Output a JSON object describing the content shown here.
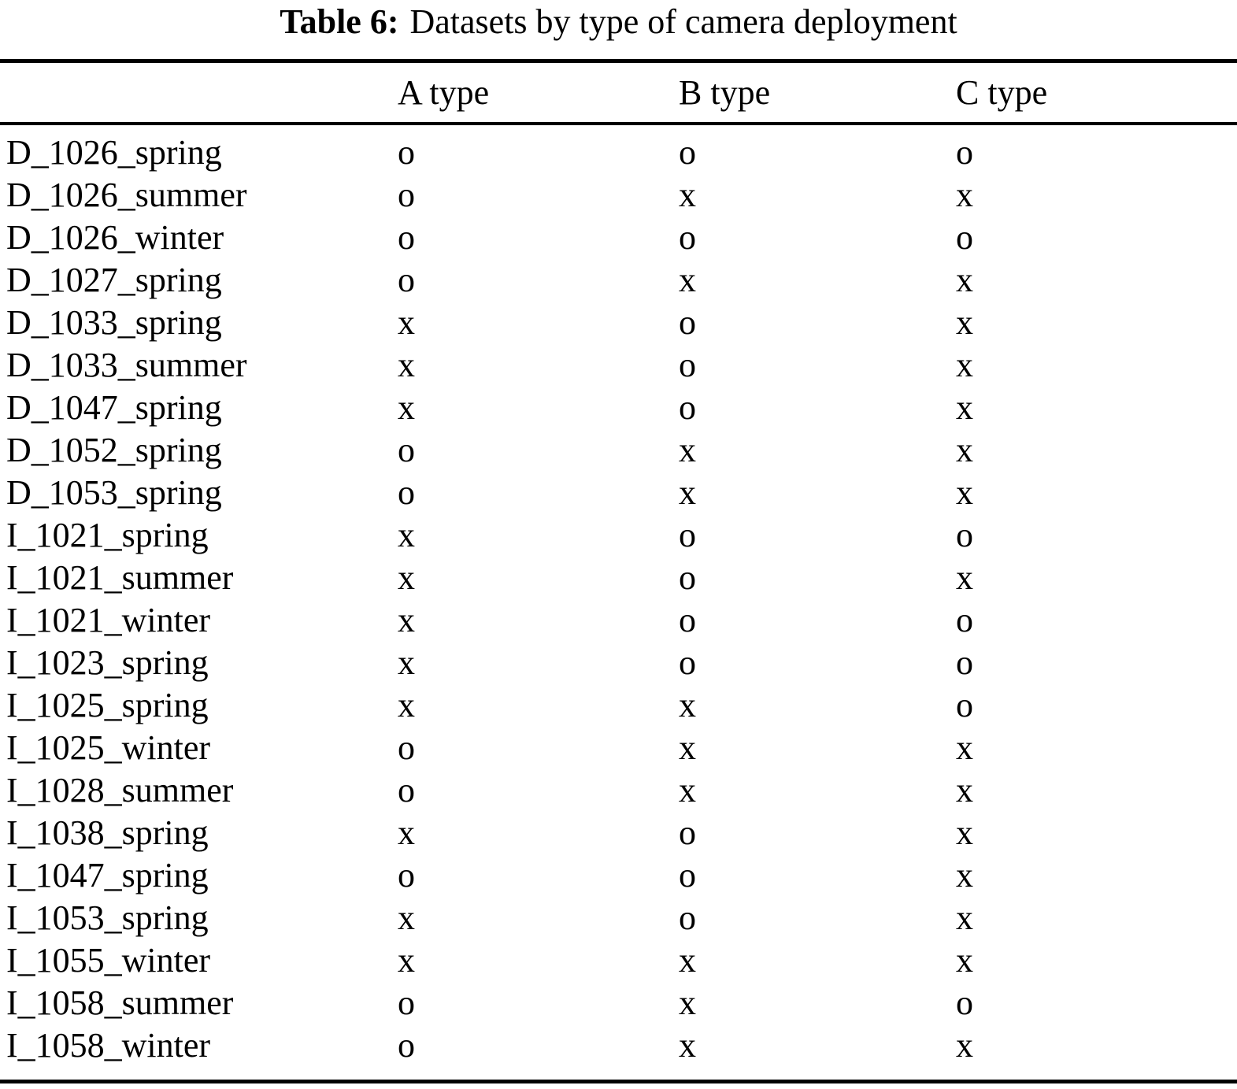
{
  "table": {
    "caption": {
      "label": "Table 6:",
      "text": "Datasets by type of camera deployment"
    },
    "columns": [
      "A type",
      "B type",
      "C type"
    ],
    "rows": [
      {
        "name": "D_1026_spring",
        "values": [
          "o",
          "o",
          "o"
        ]
      },
      {
        "name": "D_1026_summer",
        "values": [
          "o",
          "x",
          "x"
        ]
      },
      {
        "name": "D_1026_winter",
        "values": [
          "o",
          "o",
          "o"
        ]
      },
      {
        "name": "D_1027_spring",
        "values": [
          "o",
          "x",
          "x"
        ]
      },
      {
        "name": "D_1033_spring",
        "values": [
          "x",
          "o",
          "x"
        ]
      },
      {
        "name": "D_1033_summer",
        "values": [
          "x",
          "o",
          "x"
        ]
      },
      {
        "name": "D_1047_spring",
        "values": [
          "x",
          "o",
          "x"
        ]
      },
      {
        "name": "D_1052_spring",
        "values": [
          "o",
          "x",
          "x"
        ]
      },
      {
        "name": "D_1053_spring",
        "values": [
          "o",
          "x",
          "x"
        ]
      },
      {
        "name": "I_1021_spring",
        "values": [
          "x",
          "o",
          "o"
        ]
      },
      {
        "name": "I_1021_summer",
        "values": [
          "x",
          "o",
          "x"
        ]
      },
      {
        "name": "I_1021_winter",
        "values": [
          "x",
          "o",
          "o"
        ]
      },
      {
        "name": "I_1023_spring",
        "values": [
          "x",
          "o",
          "o"
        ]
      },
      {
        "name": "I_1025_spring",
        "values": [
          "x",
          "x",
          "o"
        ]
      },
      {
        "name": "I_1025_winter",
        "values": [
          "o",
          "x",
          "x"
        ]
      },
      {
        "name": "I_1028_summer",
        "values": [
          "o",
          "x",
          "x"
        ]
      },
      {
        "name": "I_1038_spring",
        "values": [
          "x",
          "o",
          "x"
        ]
      },
      {
        "name": "I_1047_spring",
        "values": [
          "o",
          "o",
          "x"
        ]
      },
      {
        "name": "I_1053_spring",
        "values": [
          "x",
          "o",
          "x"
        ]
      },
      {
        "name": "I_1055_winter",
        "values": [
          "x",
          "x",
          "x"
        ]
      },
      {
        "name": "I_1058_summer",
        "values": [
          "o",
          "x",
          "o"
        ]
      },
      {
        "name": "I_1058_winter",
        "values": [
          "o",
          "x",
          "x"
        ]
      }
    ]
  }
}
